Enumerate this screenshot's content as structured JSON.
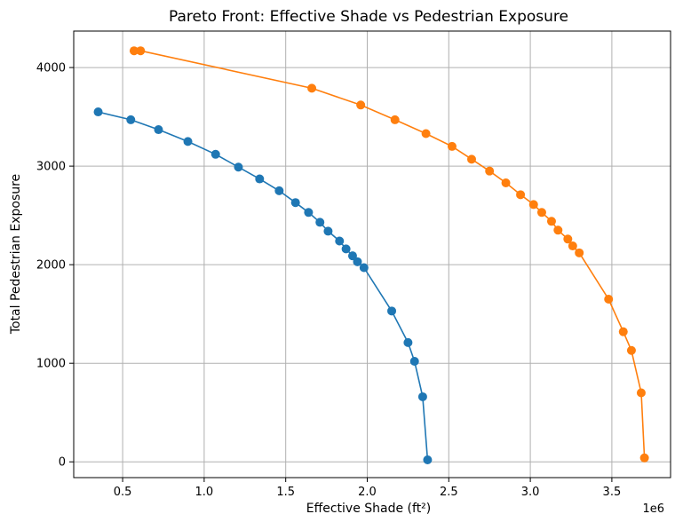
{
  "chart_data": {
    "type": "line",
    "title": "Pareto Front: Effective Shade vs Pedestrian Exposure",
    "xlabel": "Effective Shade (ft²)",
    "ylabel": "Total Pedestrian Exposure",
    "x_offset_label": "1e6",
    "x_scale_factor": 1000000,
    "xlim": [
      0.2,
      3.86
    ],
    "ylim": [
      -160,
      4370
    ],
    "x_ticks": [
      0.5,
      1.0,
      1.5,
      2.0,
      2.5,
      3.0,
      3.5
    ],
    "x_tick_labels": [
      "0.5",
      "1.0",
      "1.5",
      "2.0",
      "2.5",
      "3.0",
      "3.5"
    ],
    "y_ticks": [
      0,
      1000,
      2000,
      3000,
      4000
    ],
    "y_tick_labels": [
      "0",
      "1000",
      "2000",
      "3000",
      "4000"
    ],
    "grid": true,
    "series": [
      {
        "color": "#1f77b4",
        "marker": "circle",
        "x": [
          0.35,
          0.55,
          0.72,
          0.9,
          1.07,
          1.21,
          1.34,
          1.46,
          1.56,
          1.64,
          1.71,
          1.76,
          1.83,
          1.87,
          1.91,
          1.94,
          1.98,
          2.15,
          2.25,
          2.29,
          2.34,
          2.37
        ],
        "y": [
          3550,
          3470,
          3370,
          3250,
          3120,
          2990,
          2870,
          2750,
          2630,
          2530,
          2430,
          2340,
          2240,
          2160,
          2090,
          2030,
          1970,
          1530,
          1210,
          1020,
          660,
          20
        ]
      },
      {
        "color": "#ff7f0e",
        "marker": "circle",
        "x": [
          0.57,
          0.61,
          1.66,
          1.96,
          2.17,
          2.36,
          2.52,
          2.64,
          2.75,
          2.85,
          2.94,
          3.02,
          3.07,
          3.13,
          3.17,
          3.23,
          3.26,
          3.3,
          3.48,
          3.57,
          3.62,
          3.68,
          3.7
        ],
        "y": [
          4170,
          4170,
          3790,
          3620,
          3470,
          3330,
          3200,
          3070,
          2950,
          2830,
          2710,
          2610,
          2530,
          2440,
          2350,
          2260,
          2190,
          2120,
          1650,
          1320,
          1130,
          700,
          40
        ]
      }
    ]
  }
}
